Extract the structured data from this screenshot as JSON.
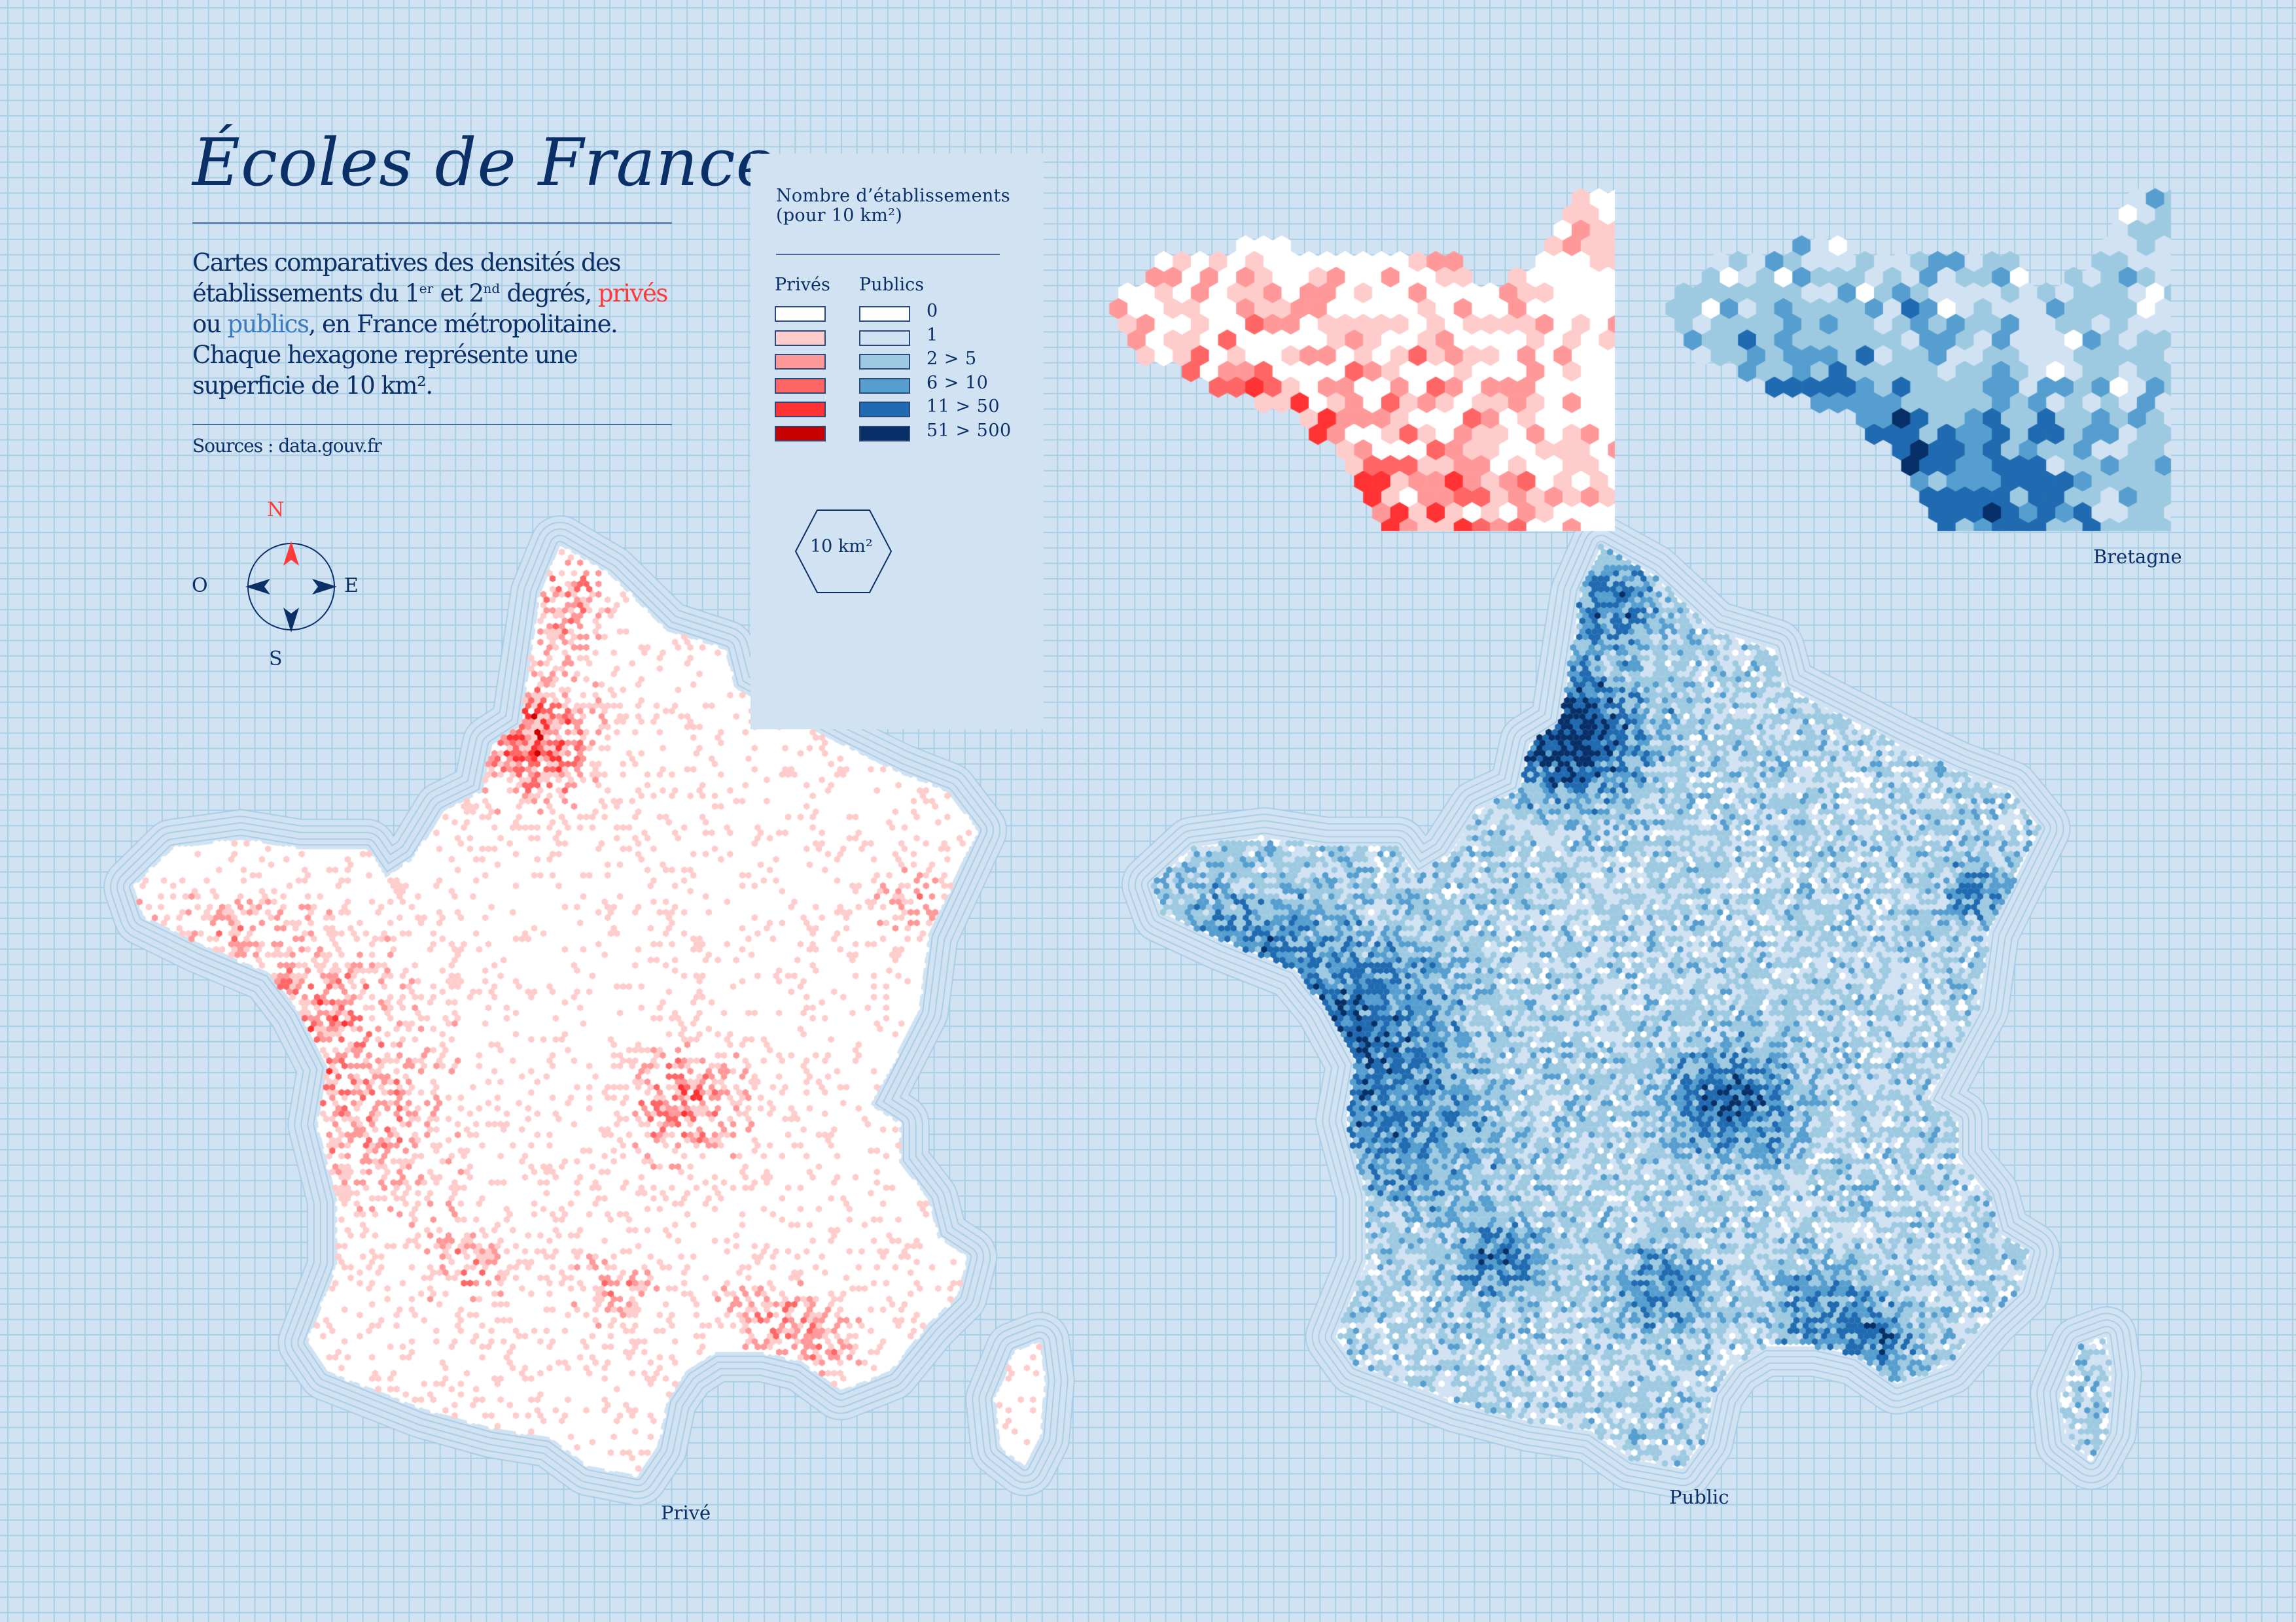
{
  "header": {
    "title": "Écoles de France",
    "description": {
      "part1": "Cartes comparatives des densités des établissements du 1",
      "sup1": "er",
      "part2": " et 2",
      "sup2": "nd",
      "part3": " degrés, ",
      "prive_word": "privés",
      "part4": " ou ",
      "public_word": "publics",
      "part5": ", en France métropolitaine. Chaque hexagone représente une superficie de 10 km²."
    },
    "sources": "Sources : data.gouv.fr"
  },
  "legend": {
    "title_line1": "Nombre d’établissements",
    "title_line2": "(pour 10 km²)",
    "prive_header": "Privés",
    "public_header": "Publics",
    "classes": [
      {
        "label": "0",
        "prive_color": "#ffffff",
        "public_color": "#ffffff"
      },
      {
        "label": "1",
        "prive_color": "#ffcccc",
        "public_color": "#d1e2f2"
      },
      {
        "label": "2 > 5",
        "prive_color": "#ff9999",
        "public_color": "#9ecae1"
      },
      {
        "label": "6 > 10",
        "prive_color": "#ff6666",
        "public_color": "#559ecf"
      },
      {
        "label": "11 > 50",
        "prive_color": "#ff3333",
        "public_color": "#1f6ab0"
      },
      {
        "label": "51 > 500",
        "prive_color": "#c90000",
        "public_color": "#083068"
      }
    ],
    "hex_scale_label": "10 km²"
  },
  "compass": {
    "north": "N",
    "south": "S",
    "east": "E",
    "west": "O",
    "north_color": "#ff3a3a"
  },
  "maps": {
    "prive_label": "Privé",
    "public_label": "Public",
    "inset_label": "Bretagne"
  },
  "colors": {
    "background": "#d1e2f2",
    "grid": "#a9cfe6",
    "coast": "#9fc8e2",
    "ink": "#0b3068"
  }
}
